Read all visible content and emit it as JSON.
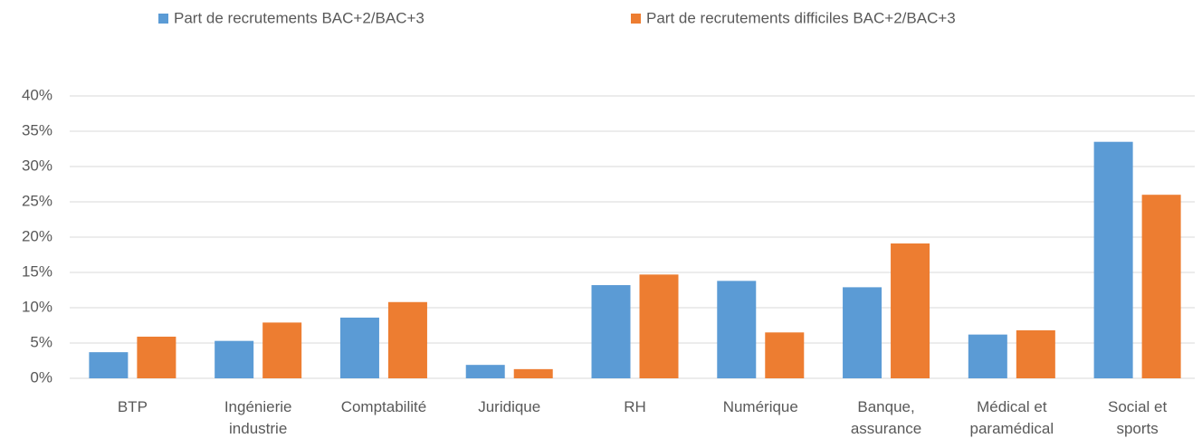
{
  "chart_data": {
    "type": "bar",
    "categories": [
      "BTP",
      "Ingénierie industrie",
      "Comptabilité",
      "Juridique",
      "RH",
      "Numérique",
      "Banque, assurance",
      "Médical et paramédical",
      "Social et sports"
    ],
    "series": [
      {
        "name": "Part de recrutements BAC+2/BAC+3",
        "color": "#5b9bd5",
        "values": [
          3.7,
          5.3,
          8.6,
          1.9,
          13.2,
          13.8,
          12.9,
          6.2,
          33.5
        ]
      },
      {
        "name": "Part de recrutements difficiles BAC+2/BAC+3",
        "color": "#ed7d31",
        "values": [
          5.9,
          7.9,
          10.8,
          1.3,
          14.7,
          6.5,
          19.1,
          6.8,
          26.0
        ]
      }
    ],
    "ylim": [
      0,
      40
    ],
    "yticks": [
      {
        "value": 0,
        "label": "0%"
      },
      {
        "value": 5,
        "label": "5%"
      },
      {
        "value": 10,
        "label": "10%"
      },
      {
        "value": 15,
        "label": "15%"
      },
      {
        "value": 20,
        "label": "20%"
      },
      {
        "value": 25,
        "label": "25%"
      },
      {
        "value": 30,
        "label": "30%"
      },
      {
        "value": 35,
        "label": "35%"
      },
      {
        "value": 40,
        "label": "40%"
      }
    ],
    "grid": true,
    "legend": "top"
  }
}
